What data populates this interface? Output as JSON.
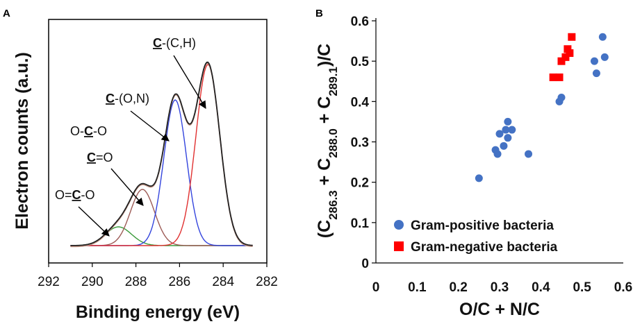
{
  "chart_data": [
    {
      "panel": "A",
      "type": "line",
      "xlabel": "Binding energy (eV)",
      "ylabel": "Electron counts  (a.u.)",
      "xlim": [
        292,
        282
      ],
      "x_reversed": true,
      "x_ticks": [
        292,
        290,
        288,
        286,
        284,
        282
      ],
      "grid": false,
      "components": [
        {
          "label": "O=C-O",
          "center": 288.8,
          "height": 0.09,
          "sigma": 0.6,
          "color": "#3a9a3a"
        },
        {
          "label": "O-C-O / C=O",
          "center": 287.7,
          "height": 0.27,
          "sigma": 0.55,
          "color": "#9c5a55"
        },
        {
          "label": "C-(O,N)",
          "center": 286.2,
          "height": 0.7,
          "sigma": 0.52,
          "color": "#3344dd"
        },
        {
          "label": "C-(C,H)",
          "center": 284.7,
          "height": 0.87,
          "sigma": 0.55,
          "color": "#e03030"
        }
      ],
      "envelope_colors": [
        "#222222",
        "#c89a8a"
      ],
      "annotations": [
        {
          "parts": [
            {
              "t": "C",
              "u": true
            },
            {
              "t": "-(C,H)",
              "u": false
            }
          ]
        },
        {
          "parts": [
            {
              "t": "C",
              "u": true
            },
            {
              "t": "-(O,N)",
              "u": false
            }
          ]
        },
        {
          "parts": [
            {
              "t": "O-",
              "u": false
            },
            {
              "t": "C",
              "u": true
            },
            {
              "t": "-O",
              "u": false
            }
          ]
        },
        {
          "parts": [
            {
              "t": "C",
              "u": true
            },
            {
              "t": "=O",
              "u": false
            }
          ]
        },
        {
          "parts": [
            {
              "t": "O=",
              "u": false
            },
            {
              "t": "C",
              "u": true
            },
            {
              "t": "-O",
              "u": false
            }
          ]
        }
      ]
    },
    {
      "panel": "B",
      "type": "scatter",
      "xlabel": "O/C + N/C",
      "ylabel": "(C286.3 + C288.0 + C289.1)/C",
      "xlim": [
        0,
        0.6
      ],
      "ylim": [
        0,
        0.6
      ],
      "x_ticks": [
        0,
        0.1,
        0.2,
        0.3,
        0.4,
        0.5,
        0.6
      ],
      "y_ticks": [
        0,
        0.1,
        0.2,
        0.3,
        0.4,
        0.5,
        0.6
      ],
      "grid": false,
      "legend_position": "bottom-right",
      "series": [
        {
          "name": "Gram-positive bacteria",
          "marker": "circle",
          "color": "#4472c4",
          "points": [
            [
              0.25,
              0.21
            ],
            [
              0.29,
              0.28
            ],
            [
              0.295,
              0.27
            ],
            [
              0.3,
              0.32
            ],
            [
              0.31,
              0.29
            ],
            [
              0.315,
              0.33
            ],
            [
              0.32,
              0.35
            ],
            [
              0.32,
              0.31
            ],
            [
              0.33,
              0.33
            ],
            [
              0.37,
              0.27
            ],
            [
              0.445,
              0.4
            ],
            [
              0.45,
              0.41
            ],
            [
              0.53,
              0.5
            ],
            [
              0.535,
              0.47
            ],
            [
              0.55,
              0.56
            ],
            [
              0.555,
              0.51
            ]
          ]
        },
        {
          "name": "Gram-negative bacteria",
          "marker": "square",
          "color": "#ff0000",
          "points": [
            [
              0.43,
              0.46
            ],
            [
              0.445,
              0.46
            ],
            [
              0.45,
              0.5
            ],
            [
              0.46,
              0.51
            ],
            [
              0.465,
              0.53
            ],
            [
              0.47,
              0.52
            ],
            [
              0.475,
              0.56
            ]
          ]
        }
      ]
    }
  ]
}
